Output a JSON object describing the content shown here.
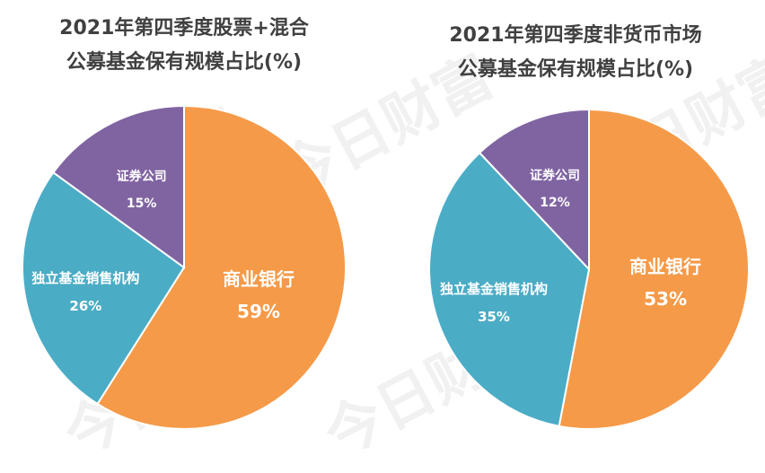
{
  "watermark": "今日财富",
  "chart_data": [
    {
      "type": "pie",
      "title": [
        "2021年第四季度股票+混合",
        "公募基金保有规模占比(%)"
      ],
      "slices": [
        {
          "label": "商业银行",
          "value_text": "59%",
          "value": 59,
          "color": "#F59A48"
        },
        {
          "label": "独立基金销售机构",
          "value_text": "26%",
          "value": 26,
          "color": "#4BACC6"
        },
        {
          "label": "证券公司",
          "value_text": "15%",
          "value": 15,
          "color": "#8064A2"
        }
      ]
    },
    {
      "type": "pie",
      "title": [
        "2021年第四季度非货币市场",
        "公募基金保有规模占比(%)"
      ],
      "slices": [
        {
          "label": "商业银行",
          "value_text": "53%",
          "value": 53,
          "color": "#F59A48"
        },
        {
          "label": "独立基金销售机构",
          "value_text": "35%",
          "value": 35,
          "color": "#4BACC6"
        },
        {
          "label": "证券公司",
          "value_text": "12%",
          "value": 12,
          "color": "#8064A2"
        }
      ]
    }
  ]
}
